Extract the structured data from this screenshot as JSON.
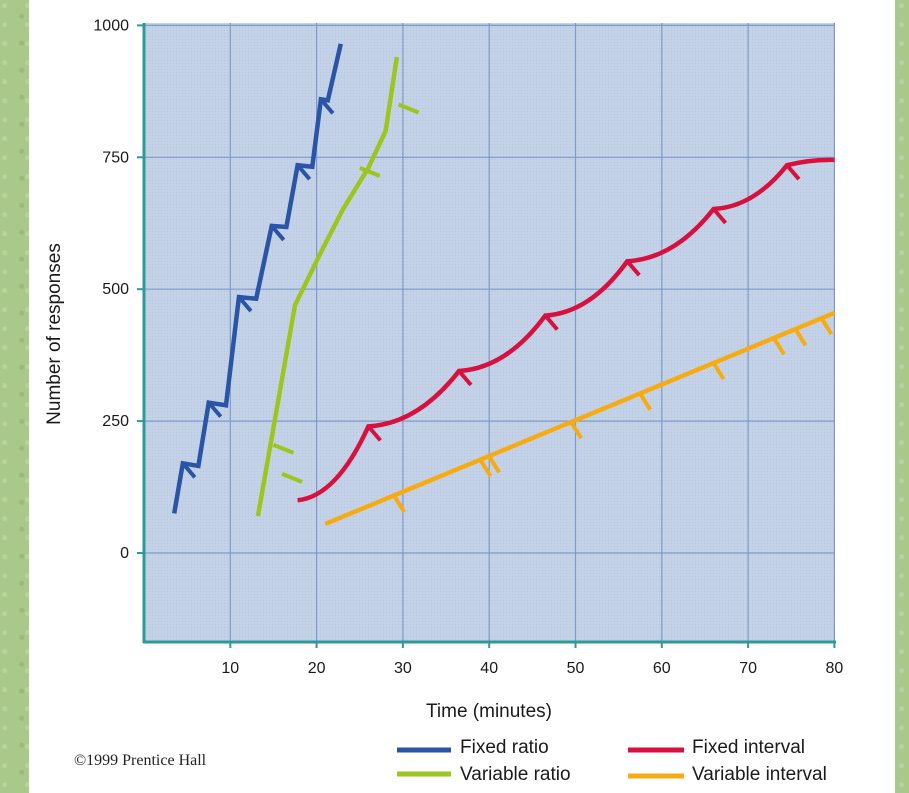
{
  "copyright": "©1999 Prentice Hall",
  "colors": {
    "plot_bg": "#c4d2e8",
    "grid": "#7f9ac8",
    "axis": "#2e9a98",
    "fixed_ratio": "#2a54a6",
    "variable_ratio": "#9cc61e",
    "fixed_interval": "#d8103e",
    "variable_interval": "#f7ab12"
  },
  "chart_data": {
    "type": "line",
    "xlabel": "Time (minutes)",
    "ylabel": "Number of responses",
    "xlim": [
      0,
      80
    ],
    "ylim": [
      -120,
      1000
    ],
    "x_ticks": [
      "10",
      "20",
      "30",
      "40",
      "50",
      "60",
      "70",
      "80"
    ],
    "y_ticks": [
      "0",
      "250",
      "500",
      "750",
      "1000"
    ],
    "grid": true,
    "legend_position": "bottom",
    "series": [
      {
        "name": "Fixed ratio",
        "style": "step",
        "points": [
          [
            3.5,
            75
          ],
          [
            4.5,
            170
          ],
          [
            6.3,
            165
          ],
          [
            7.5,
            285
          ],
          [
            9.5,
            280
          ],
          [
            11,
            485
          ],
          [
            13,
            482
          ],
          [
            14.8,
            620
          ],
          [
            16.5,
            618
          ],
          [
            17.8,
            735
          ],
          [
            19.5,
            732
          ],
          [
            20.5,
            860
          ],
          [
            21.3,
            858
          ],
          [
            22.8,
            965
          ]
        ],
        "markers": [
          [
            4.5,
            170
          ],
          [
            7.5,
            285
          ],
          [
            11,
            485
          ],
          [
            14.8,
            620
          ],
          [
            17.8,
            735
          ],
          [
            20.5,
            860
          ]
        ]
      },
      {
        "name": "Variable ratio",
        "style": "line",
        "points": [
          [
            13.2,
            70
          ],
          [
            17.5,
            470
          ],
          [
            20.5,
            570
          ],
          [
            23,
            650
          ],
          [
            26,
            730
          ],
          [
            28,
            800
          ],
          [
            29.3,
            940
          ]
        ],
        "markers": [
          [
            15,
            205
          ],
          [
            16,
            150
          ],
          [
            25,
            730
          ],
          [
            29.5,
            850
          ]
        ]
      },
      {
        "name": "Fixed interval",
        "style": "scallop",
        "points": [
          [
            17.8,
            100
          ],
          [
            26,
            240
          ],
          [
            36.5,
            345
          ],
          [
            46.5,
            450
          ],
          [
            56,
            553
          ],
          [
            66,
            652
          ],
          [
            74.5,
            735
          ],
          [
            80,
            745
          ]
        ],
        "markers": [
          [
            26,
            240
          ],
          [
            36.5,
            345
          ],
          [
            46.5,
            450
          ],
          [
            56,
            553
          ],
          [
            66,
            652
          ],
          [
            74.5,
            735
          ]
        ]
      },
      {
        "name": "Variable interval",
        "style": "line",
        "points": [
          [
            21,
            55
          ],
          [
            80,
            455
          ]
        ],
        "markers": [
          [
            29,
            108
          ],
          [
            39,
            176
          ],
          [
            40,
            183
          ],
          [
            49.5,
            248
          ],
          [
            57.5,
            302
          ],
          [
            66,
            360
          ],
          [
            73,
            407
          ],
          [
            75.5,
            424
          ],
          [
            78.5,
            445
          ]
        ]
      }
    ]
  }
}
